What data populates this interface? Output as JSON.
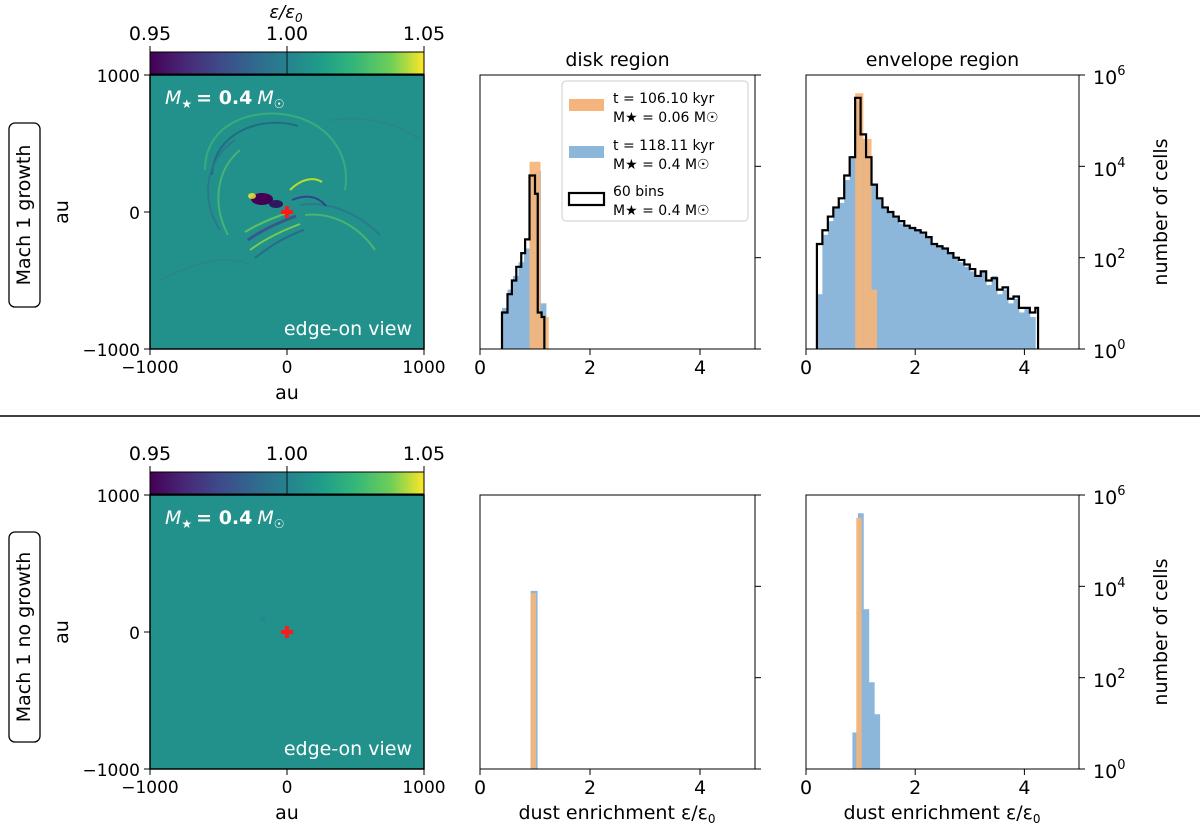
{
  "figure": {
    "colorbar_label": "ε/ε",
    "colorbar_label_sub": "0",
    "colorbar_ticks": [
      "0.95",
      "1.00",
      "1.05"
    ],
    "map_ticks": [
      "−1000",
      "0",
      "1000"
    ],
    "map_axis_label": "au",
    "map_annotation": "edge-on view",
    "mass_label_prefix": "M",
    "mass_label_value": "= 0.4",
    "mass_label_unit": "M",
    "hist_xlabel": "dust enrichment ε/ε",
    "hist_xlabel_sub": "0",
    "hist_xticks": [
      "0",
      "2",
      "4"
    ],
    "hist_ylabel": "number of cells",
    "hist_yticks": [
      {
        "base": "10",
        "exp": "0"
      },
      {
        "base": "10",
        "exp": "2"
      },
      {
        "base": "10",
        "exp": "4"
      },
      {
        "base": "10",
        "exp": "6"
      }
    ],
    "legend": [
      {
        "line1": "t = 106.10 kyr",
        "line2": "M★ = 0.06 M☉",
        "color": "#f5b47b"
      },
      {
        "line1": "t = 118.11 kyr",
        "line2": "M★ = 0.4 M☉",
        "color": "#8cb7da"
      },
      {
        "line1": "60 bins",
        "line2": "M★ = 0.4 M☉",
        "color": "#000000"
      }
    ],
    "colors": {
      "orange": "#f5b47b",
      "blue": "#8cb7da",
      "map_bg": "#23918b",
      "marker": "#ff0000"
    }
  },
  "rows": [
    {
      "label": "Mach 1 growth"
    },
    {
      "label": "Mach 1 no growth"
    }
  ],
  "chart_data": [
    {
      "type": "histogram",
      "row": "Mach 1 growth",
      "title": "disk region",
      "xlim": [
        0,
        5
      ],
      "ylim_log10": [
        0,
        6
      ],
      "blue_bars": [
        [
          0.4,
          0.5,
          0.9
        ],
        [
          0.5,
          0.6,
          1.3
        ],
        [
          0.6,
          0.7,
          1.6
        ],
        [
          0.7,
          0.8,
          1.9
        ],
        [
          0.8,
          0.9,
          2.2
        ],
        [
          0.9,
          1.0,
          3.8
        ],
        [
          1.0,
          1.1,
          3.9
        ],
        [
          1.1,
          1.2,
          1.0
        ]
      ],
      "orange_bars": [
        [
          0.9,
          1.1,
          4.1
        ],
        [
          1.1,
          1.25,
          0.7
        ]
      ],
      "step_outline": [
        [
          0.4,
          0.8
        ],
        [
          0.5,
          1.2
        ],
        [
          0.58,
          1.5
        ],
        [
          0.66,
          1.8
        ],
        [
          0.75,
          2.1
        ],
        [
          0.82,
          2.4
        ],
        [
          0.9,
          3.8
        ],
        [
          1.0,
          3.4
        ],
        [
          1.05,
          0.8
        ],
        [
          1.12,
          0.7
        ],
        [
          1.17,
          0
        ]
      ]
    },
    {
      "type": "histogram",
      "row": "Mach 1 growth",
      "title": "envelope region",
      "xlim": [
        0,
        5
      ],
      "ylim_log10": [
        0,
        6
      ],
      "blue_bars": [
        [
          0.2,
          0.3,
          1.2
        ],
        [
          0.3,
          0.4,
          2.5
        ],
        [
          0.4,
          0.5,
          2.8
        ],
        [
          0.5,
          0.6,
          3.1
        ],
        [
          0.6,
          0.7,
          3.2
        ],
        [
          0.7,
          0.8,
          3.7
        ],
        [
          0.8,
          0.9,
          4.2
        ],
        [
          0.9,
          1.0,
          5.4
        ],
        [
          1.0,
          1.1,
          4.6
        ],
        [
          1.1,
          1.2,
          4.2
        ],
        [
          1.2,
          1.3,
          3.6
        ],
        [
          1.3,
          1.4,
          3.3
        ],
        [
          1.4,
          1.5,
          3.1
        ],
        [
          1.5,
          1.6,
          3.0
        ],
        [
          1.6,
          1.7,
          2.9
        ],
        [
          1.7,
          1.8,
          2.75
        ],
        [
          1.8,
          1.9,
          2.7
        ],
        [
          1.9,
          2.0,
          2.65
        ],
        [
          2.0,
          2.1,
          2.6
        ],
        [
          2.1,
          2.2,
          2.55
        ],
        [
          2.2,
          2.3,
          2.45
        ],
        [
          2.3,
          2.4,
          2.3
        ],
        [
          2.4,
          2.5,
          2.25
        ],
        [
          2.5,
          2.6,
          2.2
        ],
        [
          2.6,
          2.7,
          2.1
        ],
        [
          2.7,
          2.8,
          2.0
        ],
        [
          2.8,
          2.9,
          1.9
        ],
        [
          2.9,
          3.0,
          1.8
        ],
        [
          3.0,
          3.1,
          1.7
        ],
        [
          3.1,
          3.2,
          1.6
        ],
        [
          3.2,
          3.3,
          1.7
        ],
        [
          3.3,
          3.4,
          1.4
        ],
        [
          3.4,
          3.5,
          1.6
        ],
        [
          3.5,
          3.6,
          1.2
        ],
        [
          3.6,
          3.7,
          1.3
        ],
        [
          3.7,
          3.8,
          1.0
        ],
        [
          3.8,
          3.9,
          1.1
        ],
        [
          3.9,
          4.0,
          0.8
        ],
        [
          4.0,
          4.1,
          0.9
        ],
        [
          4.1,
          4.2,
          0.7
        ]
      ],
      "orange_bars": [
        [
          0.9,
          1.05,
          5.6
        ],
        [
          1.05,
          1.2,
          4.6
        ],
        [
          1.2,
          1.3,
          1.3
        ]
      ],
      "step_outline": [
        [
          0.2,
          2.3
        ],
        [
          0.3,
          2.6
        ],
        [
          0.4,
          2.9
        ],
        [
          0.5,
          3.1
        ],
        [
          0.6,
          3.3
        ],
        [
          0.7,
          3.8
        ],
        [
          0.8,
          4.2
        ],
        [
          0.9,
          5.5
        ],
        [
          1.0,
          4.7
        ],
        [
          1.1,
          4.2
        ],
        [
          1.2,
          3.6
        ],
        [
          1.3,
          3.3
        ],
        [
          1.4,
          3.1
        ],
        [
          1.5,
          3.0
        ],
        [
          1.6,
          2.9
        ],
        [
          1.7,
          2.8
        ],
        [
          1.8,
          2.7
        ],
        [
          1.9,
          2.65
        ],
        [
          2.0,
          2.6
        ],
        [
          2.1,
          2.55
        ],
        [
          2.2,
          2.45
        ],
        [
          2.3,
          2.3
        ],
        [
          2.4,
          2.25
        ],
        [
          2.5,
          2.2
        ],
        [
          2.6,
          2.1
        ],
        [
          2.7,
          2.0
        ],
        [
          2.8,
          1.95
        ],
        [
          2.9,
          1.85
        ],
        [
          3.0,
          1.75
        ],
        [
          3.1,
          1.6
        ],
        [
          3.2,
          1.7
        ],
        [
          3.3,
          1.5
        ],
        [
          3.4,
          1.55
        ],
        [
          3.5,
          1.3
        ],
        [
          3.6,
          1.35
        ],
        [
          3.7,
          1.1
        ],
        [
          3.8,
          1.15
        ],
        [
          3.9,
          0.9
        ],
        [
          4.0,
          0.9
        ],
        [
          4.1,
          0.8
        ],
        [
          4.2,
          0.9
        ],
        [
          4.25,
          0
        ]
      ]
    },
    {
      "type": "histogram",
      "row": "Mach 1 no growth",
      "title": "",
      "xlim": [
        0,
        5
      ],
      "ylim_log10": [
        0,
        6
      ],
      "blue_bars": [
        [
          0.92,
          1.04,
          3.9
        ]
      ],
      "orange_bars": [
        [
          0.92,
          1.02,
          3.85
        ]
      ],
      "step_outline": []
    },
    {
      "type": "histogram",
      "row": "Mach 1 no growth",
      "title": "",
      "xlim": [
        0,
        5
      ],
      "ylim_log10": [
        0,
        6
      ],
      "blue_bars": [
        [
          0.85,
          0.95,
          0.8
        ],
        [
          0.95,
          1.05,
          5.6
        ],
        [
          1.05,
          1.15,
          3.5
        ],
        [
          1.15,
          1.25,
          1.9
        ],
        [
          1.25,
          1.35,
          1.2
        ]
      ],
      "orange_bars": [
        [
          0.92,
          1.02,
          5.5
        ]
      ],
      "step_outline": []
    }
  ]
}
